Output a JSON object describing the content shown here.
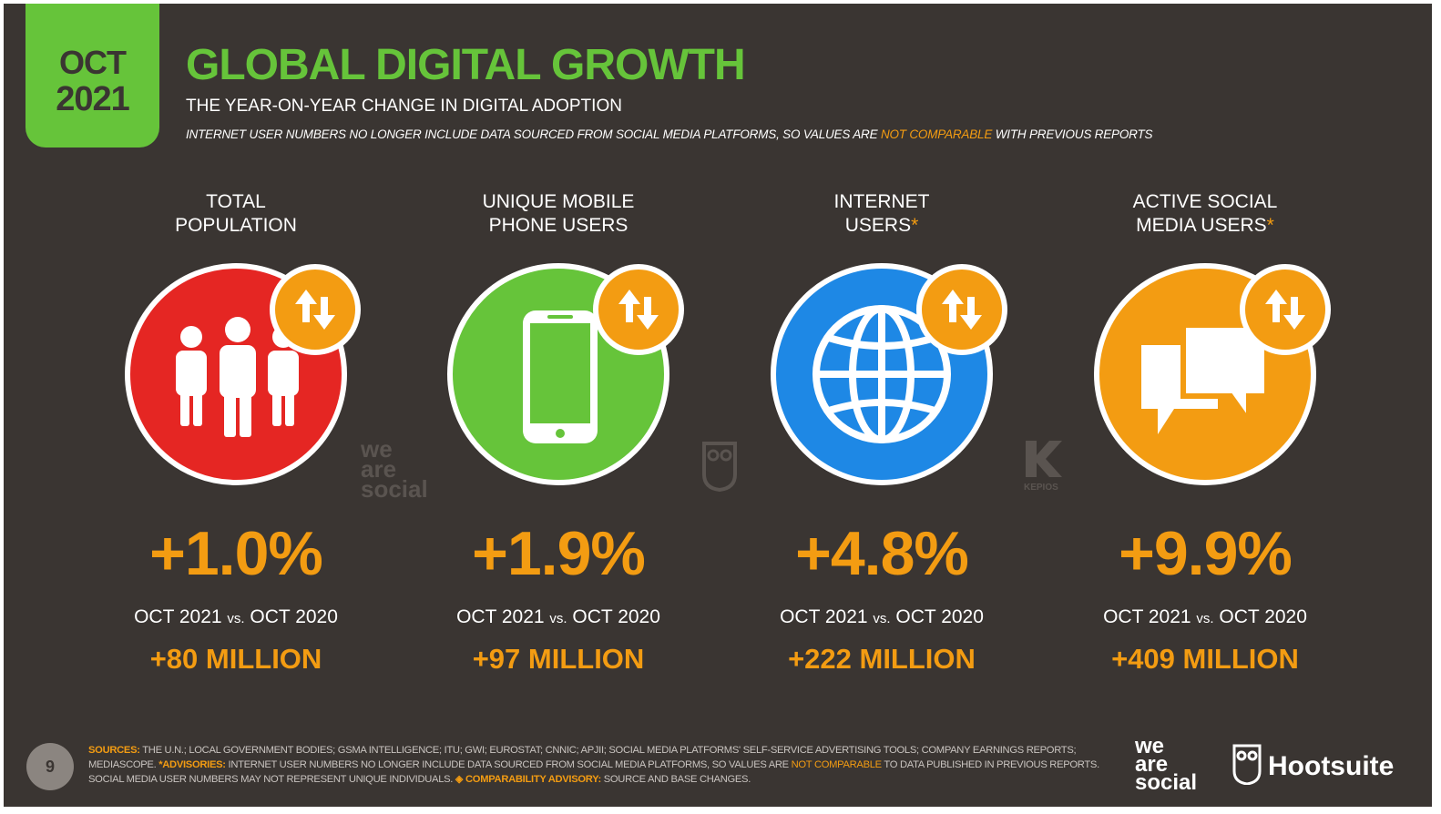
{
  "date": {
    "month": "OCT",
    "year": "2021"
  },
  "title": "GLOBAL DIGITAL GROWTH",
  "subtitle": "THE YEAR-ON-YEAR CHANGE IN DIGITAL ADOPTION",
  "note": {
    "before": "INTERNET USER NUMBERS NO LONGER INCLUDE DATA SOURCED FROM SOCIAL MEDIA PLATFORMS, SO VALUES ARE ",
    "highlight": "NOT COMPARABLE",
    "after": " WITH PREVIOUS REPORTS"
  },
  "colors": {
    "background": "#3a3532",
    "accent_green": "#66c43a",
    "accent_orange": "#f39c12",
    "red": "#e52623",
    "green": "#66c43a",
    "blue": "#1e88e5",
    "orange": "#f39c12"
  },
  "metrics": [
    {
      "label": "TOTAL\nPOPULATION",
      "star": "",
      "icon": "people-icon",
      "color": "#e52623",
      "pct": "+1.0%",
      "cmp_a": "OCT 2021 ",
      "cmp_vs": "vs.",
      "cmp_b": " OCT 2020",
      "abs": "+80 MILLION"
    },
    {
      "label": "UNIQUE MOBILE\nPHONE USERS",
      "star": "",
      "icon": "mobile-phone-icon",
      "color": "#66c43a",
      "pct": "+1.9%",
      "cmp_a": "OCT 2021 ",
      "cmp_vs": "vs.",
      "cmp_b": " OCT 2020",
      "abs": "+97 MILLION"
    },
    {
      "label": "INTERNET\nUSERS",
      "star": "*",
      "icon": "globe-icon",
      "color": "#1e88e5",
      "pct": "+4.8%",
      "cmp_a": "OCT 2021 ",
      "cmp_vs": "vs.",
      "cmp_b": " OCT 2020",
      "abs": "+222 MILLION"
    },
    {
      "label": "ACTIVE SOCIAL\nMEDIA USERS",
      "star": "*",
      "icon": "chat-bubbles-icon",
      "color": "#f39c12",
      "pct": "+9.9%",
      "cmp_a": "OCT 2021 ",
      "cmp_vs": "vs.",
      "cmp_b": " OCT 2020",
      "abs": "+409 MILLION"
    }
  ],
  "watermarks": {
    "was": [
      "we",
      "are",
      "social"
    ],
    "kepios": "KEPIOS"
  },
  "footer": {
    "page": "9",
    "sources_key": "SOURCES:",
    "sources_text": " THE U.N.; LOCAL GOVERNMENT BODIES; GSMA INTELLIGENCE; ITU; GWI; EUROSTAT; CNNIC; APJII; SOCIAL MEDIA PLATFORMS' SELF-SERVICE ADVERTISING TOOLS; COMPANY EARNINGS REPORTS; MEDIASCOPE. ",
    "advisories_key": "*ADVISORIES:",
    "advisories_text": " INTERNET USER NUMBERS NO LONGER INCLUDE DATA SOURCED FROM SOCIAL MEDIA PLATFORMS, SO VALUES ARE ",
    "advisories_hl": "NOT COMPARABLE",
    "advisories_text2": " TO DATA PUBLISHED IN PREVIOUS REPORTS. SOCIAL MEDIA USER NUMBERS MAY NOT REPRESENT UNIQUE INDIVIDUALS. ",
    "comparability_key": "◈ COMPARABILITY ADVISORY:",
    "comparability_text": " SOURCE AND BASE CHANGES.",
    "logo_was": [
      "we",
      "are",
      "social"
    ],
    "logo_hootsuite": "Hootsuite"
  }
}
